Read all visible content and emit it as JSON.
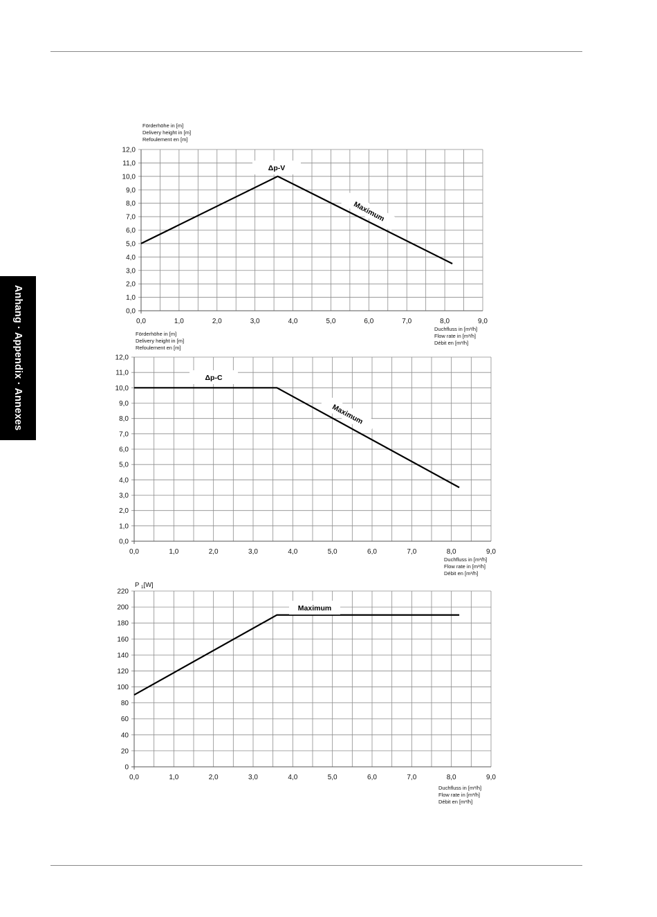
{
  "side_tab": {
    "label": "Anhang · Appendix · Annexes"
  },
  "chart_data": [
    {
      "type": "line",
      "ylabel": [
        "Förderhöhe in [m]",
        "Delivery height in [m]",
        "Refoulement en [m]"
      ],
      "xlabel": [
        "Duchfluss in [m³/h]",
        "Flow rate in [m³/h]",
        "Débit en [m³/h]"
      ],
      "xlim": [
        0,
        9
      ],
      "ylim": [
        0,
        12
      ],
      "x_ticks": [
        "0,0",
        "1,0",
        "2,0",
        "3,0",
        "4,0",
        "5,0",
        "6,0",
        "7,0",
        "8,0",
        "9,0"
      ],
      "y_ticks": [
        "0,0",
        "1,0",
        "2,0",
        "3,0",
        "4,0",
        "5,0",
        "6,0",
        "7,0",
        "8,0",
        "9,0",
        "10,0",
        "11,0",
        "12,0"
      ],
      "grid": true,
      "annotations": [
        "Δp-V",
        "Maximum"
      ],
      "series": [
        {
          "name": "Maximum",
          "x": [
            0,
            3.6,
            8.2
          ],
          "y": [
            5.0,
            10.0,
            3.5
          ]
        }
      ]
    },
    {
      "type": "line",
      "ylabel": [
        "Förderhöhe in [m]",
        "Delivery height in [m]",
        "Refoulement en [m]"
      ],
      "xlabel": [
        "Duchfluss in [m³/h]",
        "Flow rate in [m³/h]",
        "Débit en [m³/h]"
      ],
      "xlim": [
        0,
        9
      ],
      "ylim": [
        0,
        12
      ],
      "x_ticks": [
        "0,0",
        "1,0",
        "2,0",
        "3,0",
        "4,0",
        "5,0",
        "6,0",
        "7,0",
        "8,0",
        "9,0"
      ],
      "y_ticks": [
        "0,0",
        "1,0",
        "2,0",
        "3,0",
        "4,0",
        "5,0",
        "6,0",
        "7,0",
        "8,0",
        "9,0",
        "10,0",
        "11,0",
        "12,0"
      ],
      "grid": true,
      "annotations": [
        "Δp-C",
        "Maximum"
      ],
      "series": [
        {
          "name": "Maximum",
          "x": [
            0,
            3.6,
            8.2
          ],
          "y": [
            10.0,
            10.0,
            3.5
          ]
        }
      ]
    },
    {
      "type": "line",
      "ylabel": [
        "P 1 [W]"
      ],
      "xlabel": [
        "Duchfluss in [m³/h]",
        "Flow rate in [m³/h]",
        "Débit en [m³/h]"
      ],
      "xlim": [
        0,
        9
      ],
      "ylim": [
        0,
        220
      ],
      "x_ticks": [
        "0,0",
        "1,0",
        "2,0",
        "3,0",
        "4,0",
        "5,0",
        "6,0",
        "7,0",
        "8,0",
        "9,0"
      ],
      "y_ticks": [
        "0",
        "20",
        "40",
        "60",
        "80",
        "100",
        "120",
        "140",
        "160",
        "180",
        "200",
        "220"
      ],
      "grid": true,
      "annotations": [
        "Maximum"
      ],
      "series": [
        {
          "name": "Maximum",
          "x": [
            0,
            3.6,
            8.2
          ],
          "y": [
            90,
            190,
            190
          ]
        }
      ]
    }
  ]
}
